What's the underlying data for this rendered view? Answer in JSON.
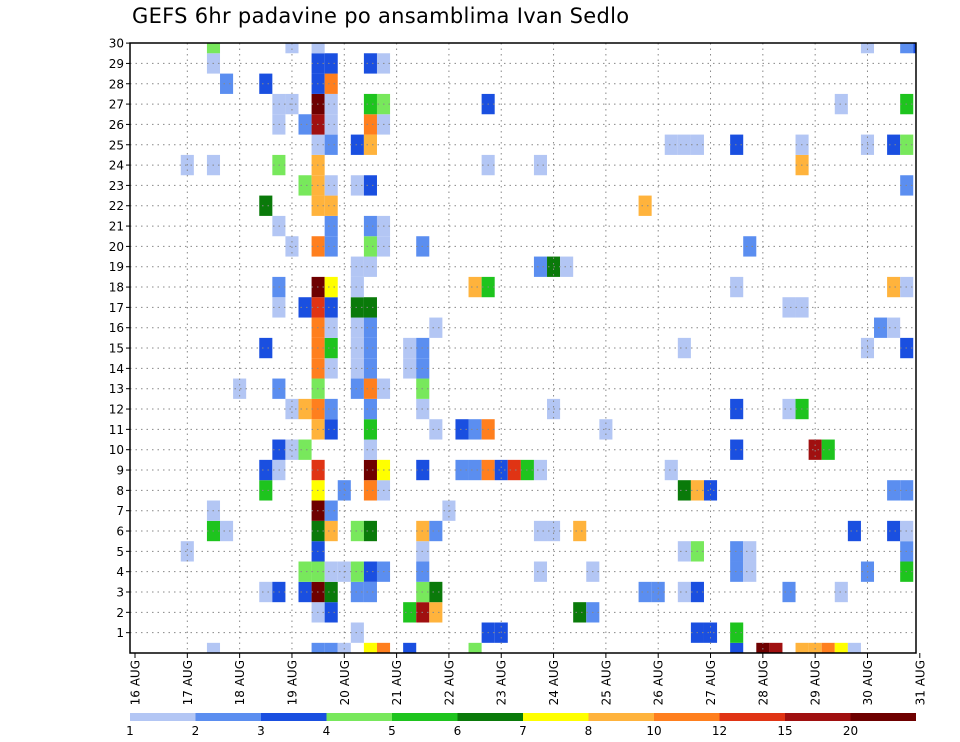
{
  "chart_data": {
    "type": "heatmap",
    "title": "GEFS 6hr padavine po ansamblima Ivan Sedlo",
    "y_ticks": [
      1,
      2,
      3,
      4,
      5,
      6,
      7,
      8,
      9,
      10,
      11,
      12,
      13,
      14,
      15,
      16,
      17,
      18,
      19,
      20,
      21,
      22,
      23,
      24,
      25,
      26,
      27,
      28,
      29,
      30
    ],
    "x_ticks": [
      "16 AUG",
      "17 AUG",
      "18 AUG",
      "19 AUG",
      "20 AUG",
      "21 AUG",
      "22 AUG",
      "23 AUG",
      "24 AUG",
      "25 AUG",
      "26 AUG",
      "27 AUG",
      "28 AUG",
      "29 AUG",
      "30 AUG",
      "31 AUG"
    ],
    "x_unit": "6-hour step",
    "x_range": [
      0,
      60
    ],
    "y_range": [
      0,
      30
    ],
    "grid": true,
    "colorbar": {
      "tick_labels": [
        "1",
        "2",
        "3",
        "4",
        "5",
        "6",
        "7",
        "8",
        "10",
        "12",
        "15",
        "20"
      ],
      "colors": [
        "#b3c6f4",
        "#5b8ef0",
        "#1a4fe0",
        "#78e85c",
        "#1ec41e",
        "#0a7a0a",
        "#ffff00",
        "#ffb33c",
        "#ff7f1e",
        "#e03414",
        "#a01010",
        "#6e0000"
      ]
    },
    "cells": [
      [
        0,
        6,
        0
      ],
      [
        0,
        14,
        1
      ],
      [
        0,
        15,
        1
      ],
      [
        0,
        16,
        0
      ],
      [
        0,
        18,
        6
      ],
      [
        0,
        19,
        8
      ],
      [
        0,
        21,
        2
      ],
      [
        0,
        26,
        3
      ],
      [
        0,
        46,
        2
      ],
      [
        0,
        48,
        11
      ],
      [
        0,
        49,
        10
      ],
      [
        0,
        51,
        7
      ],
      [
        0,
        52,
        7
      ],
      [
        0,
        53,
        8
      ],
      [
        0,
        54,
        6
      ],
      [
        0,
        55,
        0
      ],
      [
        1,
        17,
        0
      ],
      [
        1,
        27,
        2
      ],
      [
        1,
        28,
        2
      ],
      [
        1,
        43,
        2
      ],
      [
        1,
        44,
        2
      ],
      [
        1,
        46,
        4
      ],
      [
        2,
        14,
        0
      ],
      [
        2,
        15,
        2
      ],
      [
        2,
        21,
        4
      ],
      [
        2,
        22,
        10
      ],
      [
        2,
        23,
        7
      ],
      [
        2,
        34,
        5
      ],
      [
        2,
        35,
        1
      ],
      [
        3,
        10,
        0
      ],
      [
        3,
        11,
        2
      ],
      [
        3,
        13,
        2
      ],
      [
        3,
        14,
        11
      ],
      [
        3,
        15,
        5
      ],
      [
        3,
        17,
        1
      ],
      [
        3,
        18,
        1
      ],
      [
        3,
        22,
        3
      ],
      [
        3,
        23,
        5
      ],
      [
        3,
        39,
        1
      ],
      [
        3,
        40,
        1
      ],
      [
        3,
        42,
        0
      ],
      [
        3,
        43,
        2
      ],
      [
        3,
        50,
        1
      ],
      [
        3,
        54,
        0
      ],
      [
        4,
        13,
        3
      ],
      [
        4,
        14,
        3
      ],
      [
        4,
        15,
        0
      ],
      [
        4,
        16,
        0
      ],
      [
        4,
        17,
        3
      ],
      [
        4,
        18,
        2
      ],
      [
        4,
        19,
        1
      ],
      [
        4,
        22,
        1
      ],
      [
        4,
        31,
        0
      ],
      [
        4,
        35,
        0
      ],
      [
        4,
        46,
        1
      ],
      [
        4,
        47,
        0
      ],
      [
        4,
        56,
        1
      ],
      [
        4,
        59,
        4
      ],
      [
        5,
        4,
        0
      ],
      [
        5,
        14,
        2
      ],
      [
        5,
        22,
        0
      ],
      [
        5,
        42,
        0
      ],
      [
        5,
        43,
        3
      ],
      [
        5,
        46,
        1
      ],
      [
        5,
        47,
        0
      ],
      [
        5,
        59,
        1
      ],
      [
        6,
        6,
        4
      ],
      [
        6,
        7,
        0
      ],
      [
        6,
        14,
        5
      ],
      [
        6,
        15,
        7
      ],
      [
        6,
        17,
        3
      ],
      [
        6,
        18,
        5
      ],
      [
        6,
        22,
        7
      ],
      [
        6,
        23,
        1
      ],
      [
        6,
        31,
        0
      ],
      [
        6,
        32,
        0
      ],
      [
        6,
        34,
        7
      ],
      [
        6,
        55,
        2
      ],
      [
        6,
        58,
        2
      ],
      [
        6,
        59,
        0
      ],
      [
        7,
        6,
        0
      ],
      [
        7,
        14,
        11
      ],
      [
        7,
        15,
        1
      ],
      [
        7,
        24,
        0
      ],
      [
        8,
        10,
        4
      ],
      [
        8,
        14,
        6
      ],
      [
        8,
        16,
        1
      ],
      [
        8,
        18,
        8
      ],
      [
        8,
        19,
        0
      ],
      [
        8,
        42,
        5
      ],
      [
        8,
        43,
        7
      ],
      [
        8,
        44,
        2
      ],
      [
        8,
        58,
        1
      ],
      [
        8,
        59,
        1
      ],
      [
        9,
        10,
        2
      ],
      [
        9,
        11,
        0
      ],
      [
        9,
        14,
        9
      ],
      [
        9,
        18,
        11
      ],
      [
        9,
        19,
        6
      ],
      [
        9,
        22,
        2
      ],
      [
        9,
        25,
        1
      ],
      [
        9,
        26,
        1
      ],
      [
        9,
        27,
        8
      ],
      [
        9,
        28,
        2
      ],
      [
        9,
        29,
        9
      ],
      [
        9,
        30,
        4
      ],
      [
        9,
        31,
        0
      ],
      [
        9,
        41,
        0
      ],
      [
        10,
        11,
        2
      ],
      [
        10,
        12,
        0
      ],
      [
        10,
        13,
        3
      ],
      [
        10,
        18,
        0
      ],
      [
        10,
        46,
        2
      ],
      [
        10,
        52,
        10
      ],
      [
        10,
        53,
        4
      ],
      [
        11,
        14,
        7
      ],
      [
        11,
        15,
        2
      ],
      [
        11,
        18,
        4
      ],
      [
        11,
        23,
        0
      ],
      [
        11,
        25,
        2
      ],
      [
        11,
        26,
        1
      ],
      [
        11,
        27,
        8
      ],
      [
        11,
        36,
        0
      ],
      [
        12,
        12,
        0
      ],
      [
        12,
        13,
        7
      ],
      [
        12,
        14,
        8
      ],
      [
        12,
        15,
        1
      ],
      [
        12,
        18,
        1
      ],
      [
        12,
        22,
        0
      ],
      [
        12,
        32,
        0
      ],
      [
        12,
        46,
        2
      ],
      [
        12,
        50,
        0
      ],
      [
        12,
        51,
        4
      ],
      [
        13,
        8,
        0
      ],
      [
        13,
        11,
        1
      ],
      [
        13,
        14,
        3
      ],
      [
        13,
        17,
        1
      ],
      [
        13,
        18,
        8
      ],
      [
        13,
        19,
        0
      ],
      [
        13,
        22,
        3
      ],
      [
        14,
        14,
        8
      ],
      [
        14,
        15,
        0
      ],
      [
        14,
        17,
        0
      ],
      [
        14,
        18,
        1
      ],
      [
        14,
        21,
        0
      ],
      [
        14,
        22,
        1
      ],
      [
        15,
        10,
        2
      ],
      [
        15,
        14,
        8
      ],
      [
        15,
        15,
        4
      ],
      [
        15,
        17,
        0
      ],
      [
        15,
        18,
        1
      ],
      [
        15,
        21,
        0
      ],
      [
        15,
        22,
        1
      ],
      [
        15,
        42,
        0
      ],
      [
        15,
        56,
        0
      ],
      [
        15,
        59,
        2
      ],
      [
        16,
        14,
        8
      ],
      [
        16,
        15,
        0
      ],
      [
        16,
        17,
        0
      ],
      [
        16,
        18,
        1
      ],
      [
        16,
        23,
        0
      ],
      [
        16,
        57,
        1
      ],
      [
        16,
        58,
        0
      ],
      [
        17,
        11,
        0
      ],
      [
        17,
        13,
        2
      ],
      [
        17,
        14,
        9
      ],
      [
        17,
        15,
        2
      ],
      [
        17,
        17,
        5
      ],
      [
        17,
        18,
        5
      ],
      [
        17,
        50,
        0
      ],
      [
        17,
        51,
        0
      ],
      [
        18,
        11,
        1
      ],
      [
        18,
        14,
        11
      ],
      [
        18,
        15,
        6
      ],
      [
        18,
        17,
        0
      ],
      [
        18,
        26,
        7
      ],
      [
        18,
        27,
        4
      ],
      [
        18,
        46,
        0
      ],
      [
        18,
        58,
        7
      ],
      [
        18,
        59,
        0
      ],
      [
        19,
        17,
        0
      ],
      [
        19,
        18,
        0
      ],
      [
        19,
        31,
        1
      ],
      [
        19,
        32,
        5
      ],
      [
        19,
        33,
        0
      ],
      [
        20,
        12,
        0
      ],
      [
        20,
        14,
        8
      ],
      [
        20,
        15,
        1
      ],
      [
        20,
        18,
        3
      ],
      [
        20,
        19,
        0
      ],
      [
        20,
        22,
        1
      ],
      [
        20,
        47,
        1
      ],
      [
        21,
        11,
        0
      ],
      [
        21,
        15,
        1
      ],
      [
        21,
        18,
        1
      ],
      [
        21,
        19,
        0
      ],
      [
        22,
        10,
        5
      ],
      [
        22,
        14,
        7
      ],
      [
        22,
        15,
        7
      ],
      [
        22,
        39,
        7
      ],
      [
        23,
        13,
        3
      ],
      [
        23,
        14,
        7
      ],
      [
        23,
        15,
        0
      ],
      [
        23,
        17,
        0
      ],
      [
        23,
        18,
        2
      ],
      [
        23,
        59,
        1
      ],
      [
        24,
        4,
        0
      ],
      [
        24,
        6,
        0
      ],
      [
        24,
        11,
        3
      ],
      [
        24,
        14,
        7
      ],
      [
        24,
        27,
        0
      ],
      [
        24,
        31,
        0
      ],
      [
        24,
        51,
        7
      ],
      [
        25,
        14,
        0
      ],
      [
        25,
        15,
        1
      ],
      [
        25,
        17,
        2
      ],
      [
        25,
        18,
        7
      ],
      [
        25,
        41,
        0
      ],
      [
        25,
        42,
        0
      ],
      [
        25,
        43,
        0
      ],
      [
        25,
        46,
        2
      ],
      [
        25,
        51,
        0
      ],
      [
        25,
        56,
        0
      ],
      [
        25,
        58,
        2
      ],
      [
        25,
        59,
        3
      ],
      [
        26,
        11,
        0
      ],
      [
        26,
        13,
        1
      ],
      [
        26,
        14,
        10
      ],
      [
        26,
        15,
        0
      ],
      [
        26,
        18,
        8
      ],
      [
        26,
        19,
        0
      ],
      [
        27,
        11,
        0
      ],
      [
        27,
        12,
        0
      ],
      [
        27,
        14,
        11
      ],
      [
        27,
        15,
        0
      ],
      [
        27,
        18,
        4
      ],
      [
        27,
        19,
        3
      ],
      [
        27,
        27,
        2
      ],
      [
        27,
        54,
        0
      ],
      [
        27,
        59,
        4
      ],
      [
        28,
        7,
        1
      ],
      [
        28,
        10,
        2
      ],
      [
        28,
        14,
        2
      ],
      [
        28,
        15,
        8
      ],
      [
        29,
        6,
        0
      ],
      [
        29,
        14,
        2
      ],
      [
        29,
        15,
        2
      ],
      [
        29,
        18,
        2
      ],
      [
        29,
        19,
        0
      ],
      [
        30,
        6,
        3
      ],
      [
        30,
        12,
        0
      ],
      [
        30,
        14,
        0
      ],
      [
        30,
        56,
        0
      ],
      [
        30,
        59,
        1
      ],
      [
        30,
        60,
        2
      ]
    ]
  }
}
